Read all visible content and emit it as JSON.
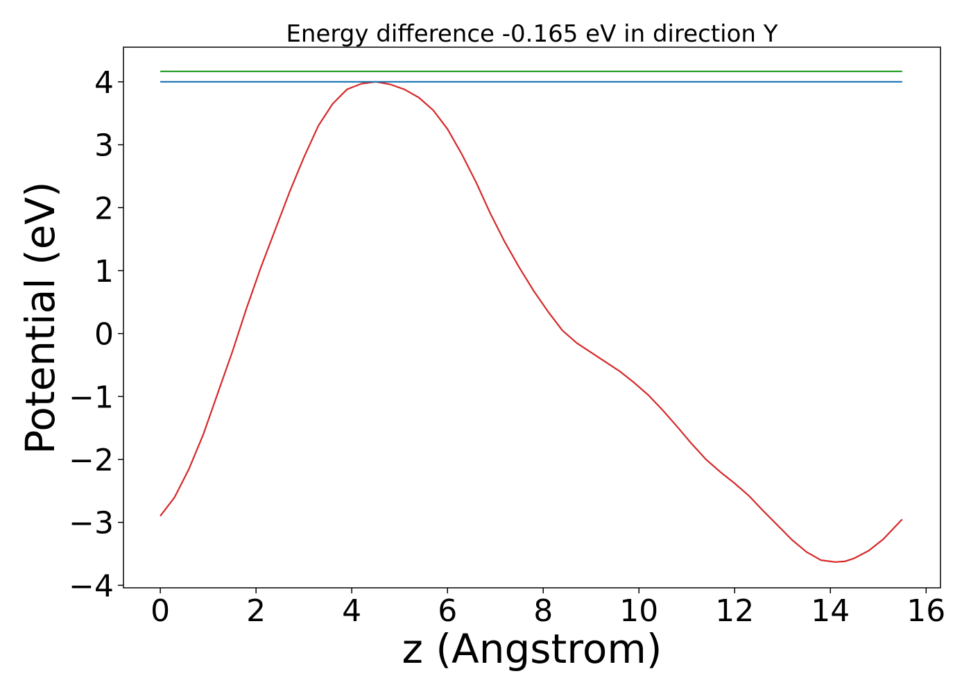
{
  "chart_data": {
    "type": "line",
    "title": "Energy difference -0.165 eV in direction Y",
    "xlabel": "z (Angstrom)",
    "ylabel": "Potential (eV)",
    "xlim": [
      -0.77,
      16.3
    ],
    "ylim": [
      -4.04,
      4.55
    ],
    "xticks": [
      0,
      2,
      4,
      6,
      8,
      10,
      12,
      14,
      16
    ],
    "xtick_labels": [
      "0",
      "2",
      "4",
      "6",
      "8",
      "10",
      "12",
      "14",
      "16"
    ],
    "yticks": [
      -4,
      -3,
      -2,
      -1,
      0,
      1,
      2,
      3,
      4
    ],
    "ytick_labels": [
      "−4",
      "−3",
      "−2",
      "−1",
      "0",
      "1",
      "2",
      "3",
      "4"
    ],
    "grid": false,
    "series": [
      {
        "color": "#d62728",
        "x": [
          0.0,
          0.3,
          0.6,
          0.9,
          1.2,
          1.5,
          1.8,
          2.1,
          2.4,
          2.7,
          3.0,
          3.3,
          3.6,
          3.9,
          4.2,
          4.5,
          4.8,
          5.1,
          5.4,
          5.7,
          6.0,
          6.3,
          6.6,
          6.9,
          7.2,
          7.5,
          7.8,
          8.1,
          8.4,
          8.7,
          9.0,
          9.3,
          9.6,
          9.9,
          10.2,
          10.5,
          10.8,
          11.1,
          11.4,
          11.7,
          12.0,
          12.3,
          12.6,
          12.9,
          13.2,
          13.5,
          13.8,
          14.1,
          14.3,
          14.5,
          14.8,
          15.1,
          15.5
        ],
        "y": [
          -2.9,
          -2.6,
          -2.15,
          -1.6,
          -0.95,
          -0.3,
          0.4,
          1.05,
          1.65,
          2.25,
          2.8,
          3.3,
          3.65,
          3.88,
          3.97,
          4.0,
          3.96,
          3.88,
          3.75,
          3.55,
          3.25,
          2.85,
          2.4,
          1.9,
          1.45,
          1.05,
          0.68,
          0.35,
          0.05,
          -0.15,
          -0.3,
          -0.45,
          -0.6,
          -0.78,
          -0.98,
          -1.22,
          -1.48,
          -1.75,
          -2.0,
          -2.2,
          -2.38,
          -2.58,
          -2.82,
          -3.05,
          -3.28,
          -3.47,
          -3.6,
          -3.63,
          -3.62,
          -3.57,
          -3.45,
          -3.27,
          -2.95
        ]
      },
      {
        "color": "#1f77b4",
        "x": [
          0.0,
          15.5
        ],
        "y": [
          4.0,
          4.0
        ]
      },
      {
        "color": "#2ca02c",
        "x": [
          0.0,
          15.5
        ],
        "y": [
          4.165,
          4.165
        ]
      }
    ]
  }
}
